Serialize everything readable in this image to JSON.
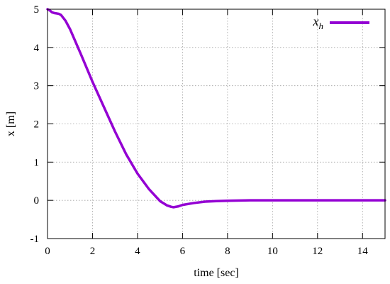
{
  "chart_data": {
    "type": "line",
    "title": "",
    "xlabel": "time [sec]",
    "ylabel": "x [m]",
    "xlim": [
      0,
      15
    ],
    "ylim": [
      -1,
      5
    ],
    "x_ticks": [
      "0",
      "2",
      "4",
      "6",
      "8",
      "10",
      "12",
      "14"
    ],
    "y_ticks": [
      "-1",
      "0",
      "1",
      "2",
      "3",
      "4",
      "5"
    ],
    "grid": true,
    "legend_placement": "top-right",
    "series": [
      {
        "name": "x",
        "name_subscript": "h",
        "color": "#9400d3",
        "x": [
          0,
          0.1,
          0.2,
          0.3,
          0.5,
          0.6,
          0.8,
          1,
          1.5,
          2,
          2.5,
          3,
          3.5,
          4,
          4.5,
          5,
          5.3,
          5.5,
          5.6,
          5.8,
          6,
          6.5,
          7,
          7.5,
          8,
          9,
          10,
          11,
          12,
          13,
          14,
          15
        ],
        "y": [
          5.0,
          4.97,
          4.92,
          4.9,
          4.88,
          4.85,
          4.7,
          4.48,
          3.8,
          3.1,
          2.45,
          1.8,
          1.2,
          0.7,
          0.3,
          -0.02,
          -0.13,
          -0.17,
          -0.18,
          -0.16,
          -0.12,
          -0.07,
          -0.035,
          -0.02,
          -0.01,
          0,
          0,
          0,
          0,
          0,
          0,
          0
        ]
      }
    ]
  }
}
